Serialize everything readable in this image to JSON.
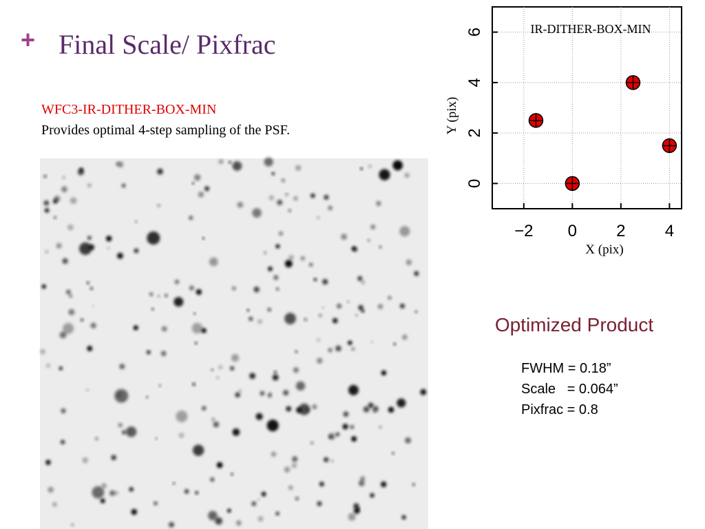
{
  "header": {
    "bullet": "+",
    "title": "Final Scale/ Pixfrac"
  },
  "intro": {
    "pattern": "WFC3-IR-DITHER-BOX-MIN",
    "description": "Provides optimal 4-step sampling of the PSF."
  },
  "chart_data": {
    "type": "scatter",
    "title": "IR-DITHER-BOX-MIN",
    "x_label": "X (pix)",
    "y_label": "Y (pix)",
    "x": [
      -1.5,
      0,
      2.5,
      4
    ],
    "y": [
      2.5,
      0,
      4,
      1.5
    ],
    "color": "#e00000",
    "xlim": [
      -3.3,
      4.5
    ],
    "ylim": [
      -1,
      7
    ],
    "xticks": [
      {
        "value": -2,
        "label": "−2"
      },
      0,
      2,
      4
    ],
    "yticks": [
      0,
      2,
      4,
      6
    ],
    "grid": true
  },
  "product": {
    "title": "Optimized Product",
    "lines": [
      "FWHM = 0.18”",
      "Scale   = 0.064”",
      "Pixfrac = 0.8"
    ]
  }
}
